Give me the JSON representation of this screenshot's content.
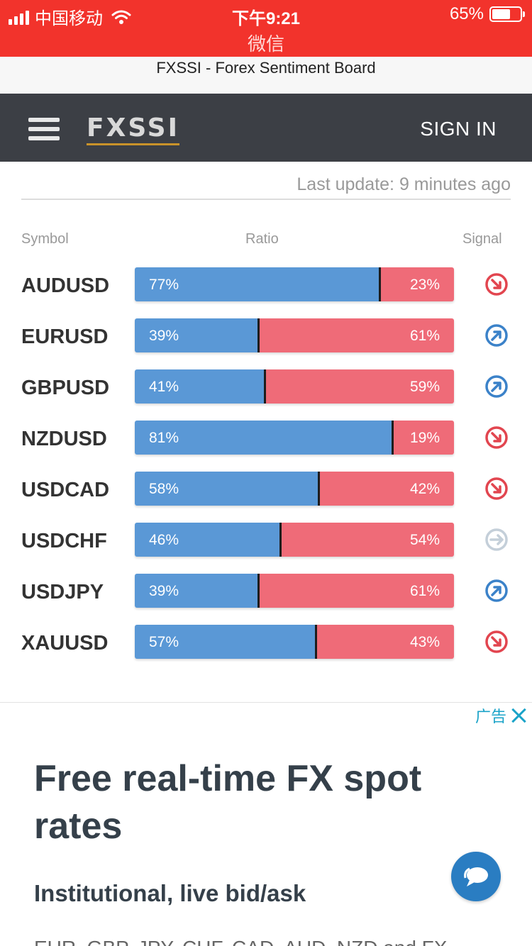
{
  "status_bar": {
    "carrier": "中国移动",
    "time": "下午9:21",
    "app": "微信",
    "battery": "65%",
    "battery_level": 0.65
  },
  "page_title": "FXSSI - Forex Sentiment Board",
  "header": {
    "logo": "FXSSI",
    "signin_label": "SIGN IN"
  },
  "last_update": "Last update: 9 minutes ago",
  "columns": {
    "symbol": "Symbol",
    "ratio": "Ratio",
    "signal": "Signal"
  },
  "colors": {
    "long": "#5a98d6",
    "short": "#ef6b78",
    "signal_sell": "#e2454f",
    "signal_buy": "#3b82c9",
    "signal_neutral": "#c4cfd9"
  },
  "rows": [
    {
      "symbol": "AUDUSD",
      "long": 77,
      "short": 23,
      "long_label": "77%",
      "short_label": "23%",
      "signal": "sell"
    },
    {
      "symbol": "EURUSD",
      "long": 39,
      "short": 61,
      "long_label": "39%",
      "short_label": "61%",
      "signal": "buy"
    },
    {
      "symbol": "GBPUSD",
      "long": 41,
      "short": 59,
      "long_label": "41%",
      "short_label": "59%",
      "signal": "buy"
    },
    {
      "symbol": "NZDUSD",
      "long": 81,
      "short": 19,
      "long_label": "81%",
      "short_label": "19%",
      "signal": "sell"
    },
    {
      "symbol": "USDCAD",
      "long": 58,
      "short": 42,
      "long_label": "58%",
      "short_label": "42%",
      "signal": "sell"
    },
    {
      "symbol": "USDCHF",
      "long": 46,
      "short": 54,
      "long_label": "46%",
      "short_label": "54%",
      "signal": "neutral"
    },
    {
      "symbol": "USDJPY",
      "long": 39,
      "short": 61,
      "long_label": "39%",
      "short_label": "61%",
      "signal": "buy"
    },
    {
      "symbol": "XAUUSD",
      "long": 57,
      "short": 43,
      "long_label": "57%",
      "short_label": "43%",
      "signal": "sell"
    }
  ],
  "ad": {
    "tag": "广告",
    "title": "Free real-time FX spot rates",
    "subtitle": "Institutional, live bid/ask",
    "body": "EUR, GBP, JPY, CHF, CAD, AUD, NZD and FX"
  }
}
